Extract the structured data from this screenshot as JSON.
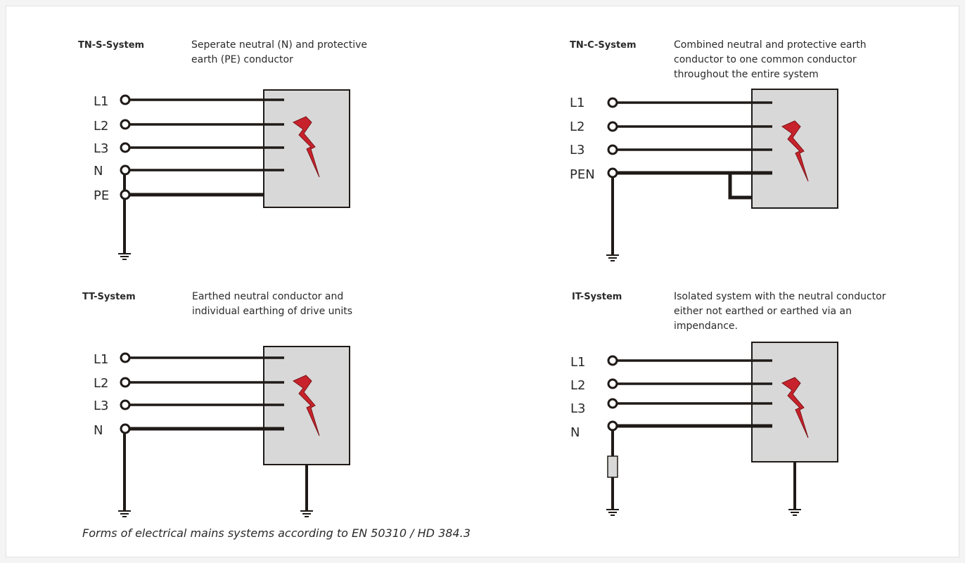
{
  "caption": "Forms of electrical mains systems according to EN 50310 / HD 384.3",
  "colors": {
    "line": "#1f1a17",
    "device_fill": "#d8d8d8",
    "bolt_fill": "#c8232c"
  },
  "systems": {
    "tns": {
      "title": "TN-S-System",
      "description": [
        "Seperate neutral (N) and protective",
        "earth (PE) conductor"
      ],
      "terminals": [
        "L1",
        "L2",
        "L3",
        "N",
        "PE"
      ]
    },
    "tnc": {
      "title": "TN-C-System",
      "description": [
        "Combined neutral and protective earth",
        "conductor to one common conductor",
        "throughout the entire system"
      ],
      "terminals": [
        "L1",
        "L2",
        "L3",
        "PEN"
      ]
    },
    "tt": {
      "title": "TT-System",
      "description": [
        "Earthed neutral conductor and",
        "individual earthing of drive units"
      ],
      "terminals": [
        "L1",
        "L2",
        "L3",
        "N"
      ]
    },
    "it": {
      "title": "IT-System",
      "description": [
        "Isolated system with the neutral conductor",
        "either not earthed or earthed via an",
        "impendance."
      ],
      "terminals": [
        "L1",
        "L2",
        "L3",
        "N"
      ]
    }
  }
}
